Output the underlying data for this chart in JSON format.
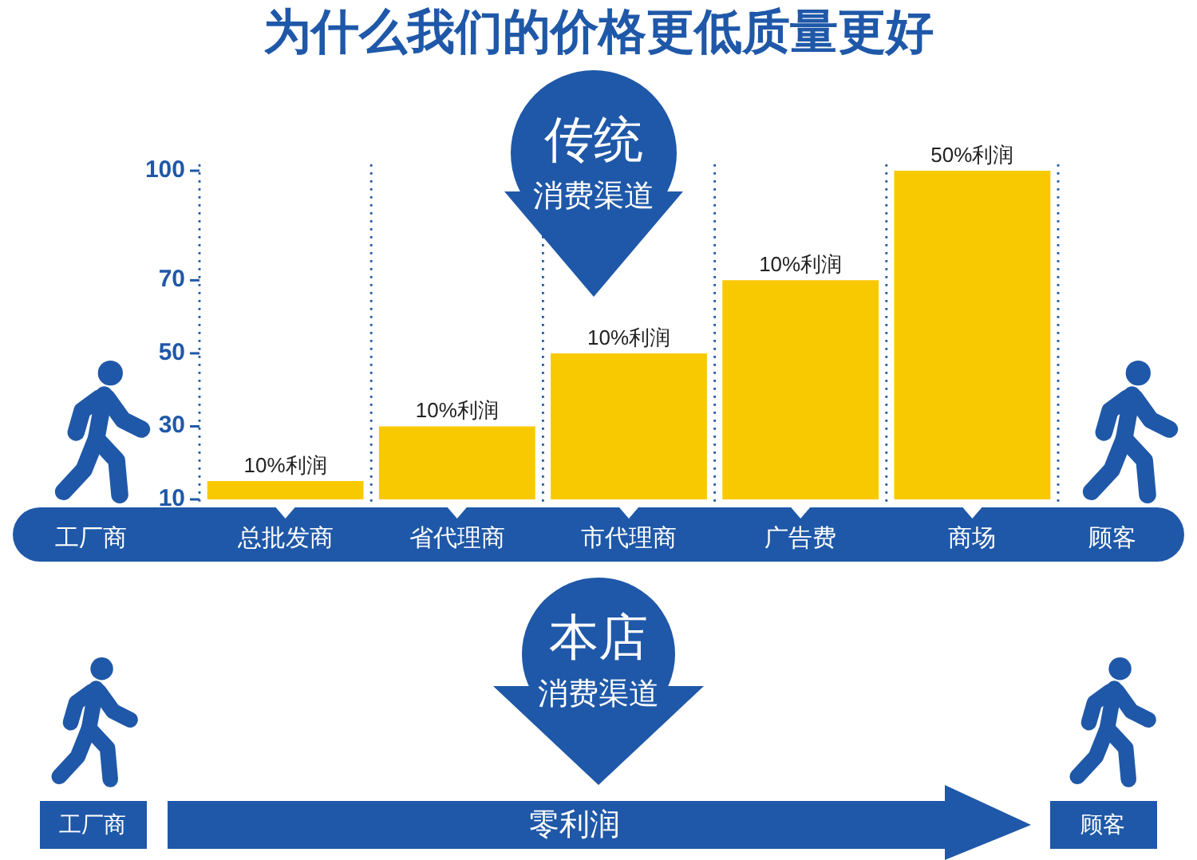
{
  "chart_data": {
    "type": "bar",
    "title": "为什么我们的价格更低质量更好",
    "categories": [
      "总批发商",
      "省代理商",
      "市代理商",
      "广告费",
      "商场"
    ],
    "values": [
      15,
      30,
      50,
      70,
      100
    ],
    "color": "#f9c900",
    "ylim": [
      10,
      100
    ],
    "yticks": [
      10,
      30,
      50,
      70,
      100
    ],
    "grid": "x",
    "annotations": [
      {
        "text": "10%利润",
        "x": "总批发商",
        "y": 15
      },
      {
        "text": "10%利润",
        "x": "省代理商",
        "y": 30
      },
      {
        "text": "10%利润",
        "x": "市代理商",
        "y": 50
      },
      {
        "text": "10%利润",
        "x": "广告费",
        "y": 70
      },
      {
        "text": "50%利润",
        "x": "商场",
        "y": 100
      },
      "传统",
      "消费渠道",
      "工厂商",
      "顾客",
      "本店",
      "消费渠道",
      "工厂商",
      "零利润",
      "顾客"
    ]
  }
}
